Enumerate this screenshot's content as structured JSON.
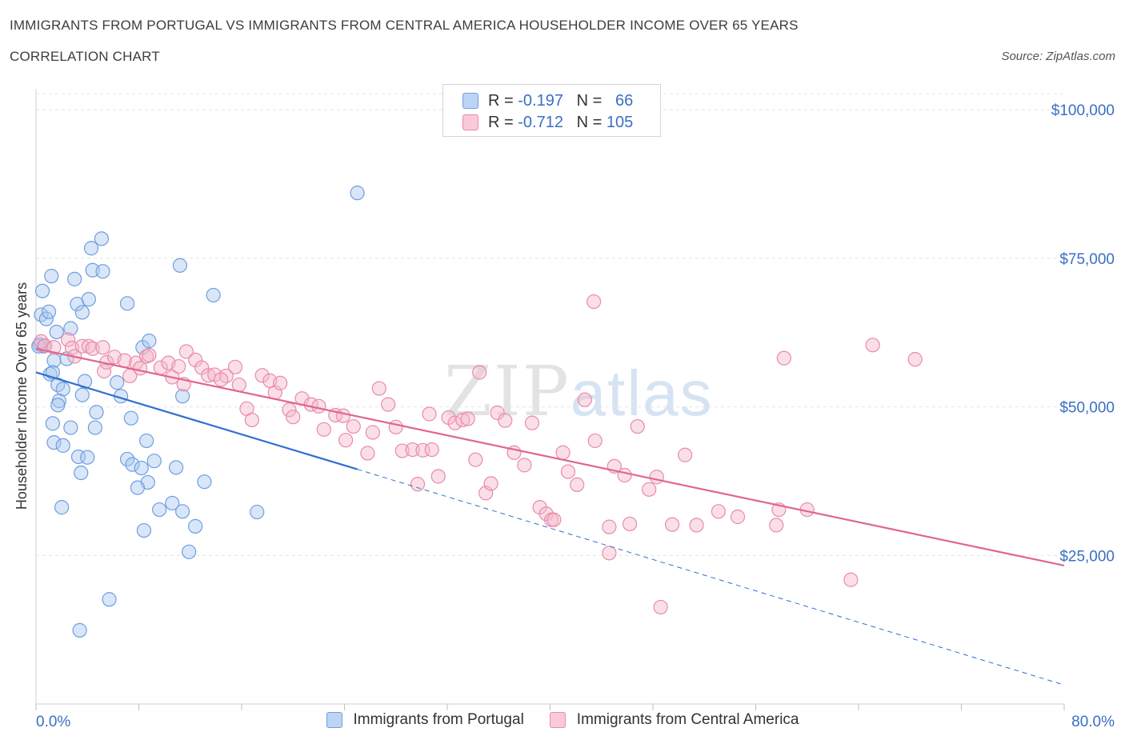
{
  "title": "IMMIGRANTS FROM PORTUGAL VS IMMIGRANTS FROM CENTRAL AMERICA HOUSEHOLDER INCOME OVER 65 YEARS",
  "subtitle": "CORRELATION CHART",
  "source": "Source: ZipAtlas.com",
  "watermark": {
    "zip": "ZIP",
    "atlas": "atlas"
  },
  "colors": {
    "blue_fill": "#a9c8f0",
    "blue_stroke": "#6f9ee0",
    "blue_line": "#2f6fd1",
    "pink_fill": "#f5b8cb",
    "pink_stroke": "#e98aaa",
    "pink_line": "#e0668f",
    "axis_label": "#3a6fc4"
  },
  "legend": {
    "rows": [
      {
        "r_label": "R =",
        "r_value": "-0.197",
        "n_label": "N =",
        "n_value": "66"
      },
      {
        "r_label": "R =",
        "r_value": "-0.712",
        "n_label": "N =",
        "n_value": "105"
      }
    ]
  },
  "chart_data": {
    "type": "scatter",
    "ylabel": "Householder Income Over 65 years",
    "xlim": [
      0,
      80
    ],
    "ylim": [
      0,
      105000
    ],
    "x_tick_labels": [
      "0.0%",
      "80.0%"
    ],
    "y_ticks": [
      {
        "value": 25000,
        "label": "$25,000"
      },
      {
        "value": 50000,
        "label": "$50,000"
      },
      {
        "value": 75000,
        "label": "$75,000"
      },
      {
        "value": 100000,
        "label": "$100,000"
      }
    ],
    "series": [
      {
        "name": "Immigrants from Portugal",
        "color": "blue",
        "trend": {
          "x0": 0,
          "y0": 55800,
          "x1": 25,
          "y1": 39500,
          "dashed_to_x": 80,
          "dashed_to_y": 3200
        },
        "points": [
          [
            0.3,
            60500
          ],
          [
            0.5,
            69500
          ],
          [
            0.4,
            65500
          ],
          [
            0.8,
            64800
          ],
          [
            0.6,
            60200
          ],
          [
            1.0,
            66000
          ],
          [
            1.2,
            72000
          ],
          [
            1.6,
            62600
          ],
          [
            1.4,
            57800
          ],
          [
            1.1,
            55500
          ],
          [
            1.3,
            55800
          ],
          [
            1.7,
            53700
          ],
          [
            2.1,
            53000
          ],
          [
            2.4,
            58100
          ],
          [
            2.7,
            63200
          ],
          [
            3.0,
            71500
          ],
          [
            3.2,
            67300
          ],
          [
            3.6,
            65900
          ],
          [
            4.1,
            68100
          ],
          [
            4.4,
            73000
          ],
          [
            4.3,
            76700
          ],
          [
            5.1,
            78300
          ],
          [
            5.2,
            72800
          ],
          [
            3.8,
            54300
          ],
          [
            3.6,
            52000
          ],
          [
            1.8,
            51000
          ],
          [
            1.7,
            50300
          ],
          [
            1.3,
            47200
          ],
          [
            2.7,
            46500
          ],
          [
            4.7,
            49100
          ],
          [
            4.6,
            46500
          ],
          [
            6.3,
            54100
          ],
          [
            6.6,
            51800
          ],
          [
            7.1,
            67400
          ],
          [
            7.4,
            48100
          ],
          [
            8.3,
            60000
          ],
          [
            8.8,
            61100
          ],
          [
            8.6,
            44300
          ],
          [
            1.4,
            44000
          ],
          [
            2.1,
            43500
          ],
          [
            3.3,
            41600
          ],
          [
            4.0,
            41500
          ],
          [
            3.5,
            38900
          ],
          [
            7.1,
            41200
          ],
          [
            7.5,
            40300
          ],
          [
            8.2,
            39700
          ],
          [
            9.2,
            40900
          ],
          [
            8.7,
            37300
          ],
          [
            7.9,
            36400
          ],
          [
            10.9,
            39800
          ],
          [
            11.4,
            51800
          ],
          [
            11.2,
            73800
          ],
          [
            13.8,
            68800
          ],
          [
            13.1,
            37400
          ],
          [
            2.0,
            33100
          ],
          [
            9.6,
            32700
          ],
          [
            10.6,
            33800
          ],
          [
            11.4,
            32400
          ],
          [
            12.4,
            29900
          ],
          [
            8.4,
            29200
          ],
          [
            11.9,
            25600
          ],
          [
            17.2,
            32300
          ],
          [
            25.0,
            86000
          ],
          [
            5.7,
            17600
          ],
          [
            3.4,
            12400
          ],
          [
            0.2,
            60200
          ]
        ]
      },
      {
        "name": "Immigrants from Central America",
        "color": "pink",
        "trend": {
          "x0": 0,
          "y0": 59800,
          "x1": 80,
          "y1": 23300
        },
        "points": [
          [
            0.4,
            61000
          ],
          [
            0.7,
            60300
          ],
          [
            1.4,
            60000
          ],
          [
            2.5,
            61300
          ],
          [
            2.8,
            59900
          ],
          [
            3.0,
            58500
          ],
          [
            3.6,
            60200
          ],
          [
            4.1,
            60200
          ],
          [
            4.4,
            59800
          ],
          [
            5.2,
            60000
          ],
          [
            5.3,
            56000
          ],
          [
            5.5,
            57500
          ],
          [
            6.1,
            58400
          ],
          [
            6.9,
            57800
          ],
          [
            7.3,
            55200
          ],
          [
            7.8,
            57400
          ],
          [
            8.1,
            56500
          ],
          [
            8.6,
            58500
          ],
          [
            8.8,
            58700
          ],
          [
            9.7,
            56600
          ],
          [
            10.3,
            57400
          ],
          [
            10.6,
            55000
          ],
          [
            11.1,
            56800
          ],
          [
            11.5,
            53800
          ],
          [
            11.7,
            59300
          ],
          [
            12.4,
            57900
          ],
          [
            12.9,
            56600
          ],
          [
            13.4,
            55300
          ],
          [
            13.9,
            55400
          ],
          [
            14.8,
            55200
          ],
          [
            14.4,
            54600
          ],
          [
            15.5,
            56700
          ],
          [
            15.8,
            53700
          ],
          [
            16.4,
            49700
          ],
          [
            16.8,
            47800
          ],
          [
            17.6,
            55300
          ],
          [
            18.2,
            54400
          ],
          [
            18.6,
            52400
          ],
          [
            19.0,
            54000
          ],
          [
            19.7,
            49500
          ],
          [
            20.0,
            48300
          ],
          [
            20.7,
            51400
          ],
          [
            21.4,
            50400
          ],
          [
            22.0,
            50100
          ],
          [
            22.4,
            46200
          ],
          [
            23.3,
            48600
          ],
          [
            23.9,
            48500
          ],
          [
            24.1,
            44400
          ],
          [
            24.7,
            46700
          ],
          [
            25.8,
            42200
          ],
          [
            26.2,
            45700
          ],
          [
            26.7,
            53100
          ],
          [
            27.4,
            50400
          ],
          [
            28.0,
            46600
          ],
          [
            28.5,
            42600
          ],
          [
            29.3,
            42800
          ],
          [
            29.7,
            37000
          ],
          [
            30.1,
            42700
          ],
          [
            30.6,
            48800
          ],
          [
            31.3,
            38300
          ],
          [
            32.1,
            48200
          ],
          [
            32.6,
            47300
          ],
          [
            33.2,
            47800
          ],
          [
            33.6,
            48000
          ],
          [
            34.2,
            41100
          ],
          [
            35.0,
            35500
          ],
          [
            35.4,
            37100
          ],
          [
            35.9,
            49000
          ],
          [
            36.5,
            47700
          ],
          [
            37.2,
            42300
          ],
          [
            38.0,
            40200
          ],
          [
            38.6,
            47300
          ],
          [
            39.2,
            33100
          ],
          [
            39.7,
            32000
          ],
          [
            40.1,
            31000
          ],
          [
            41.0,
            42300
          ],
          [
            41.4,
            39100
          ],
          [
            42.1,
            36900
          ],
          [
            42.7,
            51200
          ],
          [
            43.5,
            44300
          ],
          [
            44.6,
            29800
          ],
          [
            45.0,
            40000
          ],
          [
            45.8,
            38500
          ],
          [
            46.2,
            30300
          ],
          [
            46.8,
            46700
          ],
          [
            47.7,
            36100
          ],
          [
            48.3,
            38200
          ],
          [
            49.5,
            30200
          ],
          [
            50.5,
            41900
          ],
          [
            51.4,
            30100
          ],
          [
            53.1,
            32400
          ],
          [
            54.6,
            31500
          ],
          [
            57.6,
            30100
          ],
          [
            58.2,
            58200
          ],
          [
            60.0,
            32700
          ],
          [
            63.4,
            20900
          ],
          [
            65.1,
            60400
          ],
          [
            68.4,
            58000
          ],
          [
            57.8,
            32700
          ],
          [
            43.4,
            67700
          ],
          [
            34.5,
            55800
          ],
          [
            44.6,
            25400
          ],
          [
            48.6,
            16300
          ],
          [
            30.8,
            42800
          ],
          [
            40.3,
            31000
          ]
        ]
      }
    ]
  }
}
